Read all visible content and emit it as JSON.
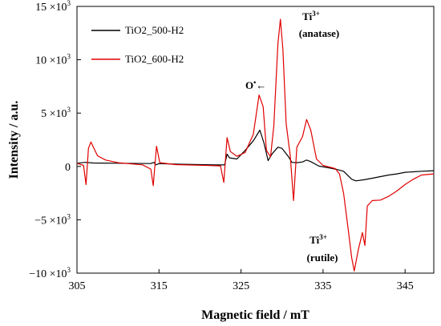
{
  "chart_data": {
    "type": "line",
    "xlabel": "Magnetic field / mT",
    "ylabel": "Intensity / a.u.",
    "xlim": [
      305,
      348.5
    ],
    "ylim": [
      -10000,
      15000
    ],
    "x_ticks": [
      305,
      315,
      325,
      335,
      345
    ],
    "x_tick_labels": [
      "305",
      "315",
      "325",
      "335",
      "345"
    ],
    "y_ticks": [
      -10000,
      -5000,
      0,
      5000,
      10000,
      15000
    ],
    "y_tick_labels": [
      {
        "mantissa": "−10",
        "base": "×10",
        "exp": "3"
      },
      {
        "mantissa": "−5",
        "base": "×10",
        "exp": "3"
      },
      {
        "mantissa": "0",
        "base": "",
        "exp": ""
      },
      {
        "mantissa": "5",
        "base": "×10",
        "exp": "3"
      },
      {
        "mantissa": "10",
        "base": "×10",
        "exp": "3"
      },
      {
        "mantissa": "15",
        "base": "×10",
        "exp": "3"
      }
    ],
    "grid": false,
    "legend_position": "top-left",
    "series": [
      {
        "name": "TiO2_500-H2",
        "color": "#000000",
        "points": [
          [
            305,
            300
          ],
          [
            306,
            380
          ],
          [
            307,
            320
          ],
          [
            310,
            300
          ],
          [
            314,
            270
          ],
          [
            314.4,
            380
          ],
          [
            314.6,
            150
          ],
          [
            315,
            260
          ],
          [
            318,
            200
          ],
          [
            322,
            140
          ],
          [
            323,
            140
          ],
          [
            323.3,
            1150
          ],
          [
            323.6,
            800
          ],
          [
            324.5,
            700
          ],
          [
            325.5,
            1500
          ],
          [
            326.5,
            2400
          ],
          [
            327.3,
            3400
          ],
          [
            327.8,
            2200
          ],
          [
            328.3,
            550
          ],
          [
            328.8,
            1200
          ],
          [
            329.5,
            1800
          ],
          [
            330,
            1700
          ],
          [
            330.8,
            900
          ],
          [
            331.2,
            380
          ],
          [
            331.8,
            350
          ],
          [
            332.5,
            420
          ],
          [
            333,
            600
          ],
          [
            333.5,
            450
          ],
          [
            334.5,
            30
          ],
          [
            335.5,
            -100
          ],
          [
            336.5,
            -250
          ],
          [
            337.5,
            -450
          ],
          [
            338.5,
            -1200
          ],
          [
            339,
            -1350
          ],
          [
            340,
            -1250
          ],
          [
            341,
            -1100
          ],
          [
            342,
            -950
          ],
          [
            343,
            -800
          ],
          [
            344,
            -700
          ],
          [
            345,
            -550
          ],
          [
            346,
            -500
          ],
          [
            347,
            -450
          ],
          [
            348.5,
            -400
          ]
        ]
      },
      {
        "name": "TiO2_600-H2",
        "color": "#e00000",
        "points": [
          [
            305,
            300
          ],
          [
            305.8,
            100
          ],
          [
            306.1,
            -1700
          ],
          [
            306.4,
            1700
          ],
          [
            306.7,
            2300
          ],
          [
            307.5,
            1000
          ],
          [
            308.5,
            600
          ],
          [
            310,
            350
          ],
          [
            313,
            150
          ],
          [
            314,
            -250
          ],
          [
            314.3,
            -1800
          ],
          [
            314.7,
            1900
          ],
          [
            315.1,
            350
          ],
          [
            317,
            170
          ],
          [
            320,
            110
          ],
          [
            322.5,
            50
          ],
          [
            322.9,
            -1500
          ],
          [
            323.3,
            2700
          ],
          [
            323.7,
            1400
          ],
          [
            324.5,
            950
          ],
          [
            325.5,
            1300
          ],
          [
            326.5,
            3000
          ],
          [
            327.2,
            6700
          ],
          [
            327.7,
            5600
          ],
          [
            328.1,
            1500
          ],
          [
            328.6,
            900
          ],
          [
            329,
            3800
          ],
          [
            329.5,
            11500
          ],
          [
            329.8,
            13800
          ],
          [
            330.1,
            11000
          ],
          [
            330.5,
            4000
          ],
          [
            331,
            1000
          ],
          [
            331.4,
            -3200
          ],
          [
            331.8,
            1800
          ],
          [
            332.5,
            2800
          ],
          [
            333,
            4400
          ],
          [
            333.5,
            3400
          ],
          [
            334.2,
            700
          ],
          [
            335,
            100
          ],
          [
            336.5,
            -200
          ],
          [
            337,
            -700
          ],
          [
            337.5,
            -2500
          ],
          [
            338,
            -5500
          ],
          [
            338.5,
            -8600
          ],
          [
            338.8,
            -9800
          ],
          [
            339.3,
            -7800
          ],
          [
            339.8,
            -6200
          ],
          [
            340.1,
            -7400
          ],
          [
            340.4,
            -3700
          ],
          [
            341,
            -3200
          ],
          [
            342,
            -3150
          ],
          [
            343,
            -2800
          ],
          [
            344,
            -2300
          ],
          [
            345,
            -1700
          ],
          [
            346,
            -1200
          ],
          [
            347,
            -800
          ],
          [
            348.5,
            -700
          ]
        ]
      }
    ],
    "annotations": [
      {
        "label": "Ti",
        "sup": "3+",
        "second_line": "(anatase)",
        "x": 329.8,
        "y": 13800
      },
      {
        "label": "O",
        "sup": "•",
        "arrow": "←",
        "second_line": "",
        "x": 327.2,
        "y": 6700
      },
      {
        "label": "Ti",
        "sup": "3+",
        "second_line": "(rutile)",
        "x": 338.8,
        "y": -9800
      }
    ]
  }
}
